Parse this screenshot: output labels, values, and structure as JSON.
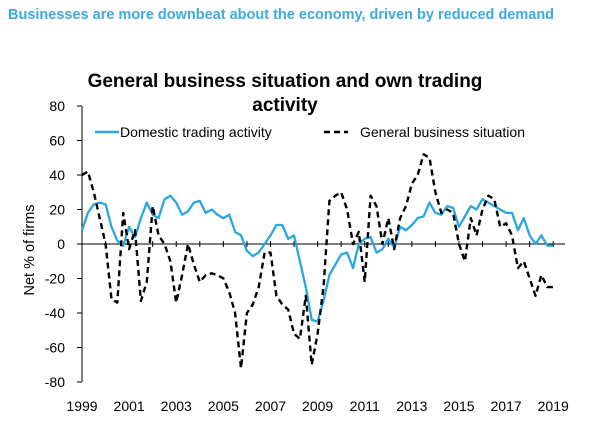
{
  "headline": "Businesses are more downbeat about the economy, driven by reduced demand",
  "chart_data": {
    "type": "line",
    "title": "General business situation and own trading activity",
    "xlabel": "",
    "ylabel": "Net % of firms",
    "xlim": [
      1999,
      2019.5
    ],
    "ylim": [
      -80,
      80
    ],
    "yticks": [
      -80,
      -60,
      -40,
      -20,
      0,
      20,
      40,
      60,
      80
    ],
    "xticks": [
      1999,
      2001,
      2003,
      2005,
      2007,
      2009,
      2011,
      2013,
      2015,
      2017,
      2019
    ],
    "legend_position": "top",
    "grid": false,
    "series": [
      {
        "name": "Domestic trading activity",
        "color": "#2aa7e0",
        "style": "solid",
        "x": [
          1999.0,
          1999.25,
          1999.5,
          1999.75,
          2000.0,
          2000.25,
          2000.5,
          2000.75,
          2001.0,
          2001.25,
          2001.5,
          2001.75,
          2002.0,
          2002.25,
          2002.5,
          2002.75,
          2003.0,
          2003.25,
          2003.5,
          2003.75,
          2004.0,
          2004.25,
          2004.5,
          2004.75,
          2005.0,
          2005.25,
          2005.5,
          2005.75,
          2006.0,
          2006.25,
          2006.5,
          2006.75,
          2007.0,
          2007.25,
          2007.5,
          2007.75,
          2008.0,
          2008.25,
          2008.5,
          2008.75,
          2009.0,
          2009.25,
          2009.5,
          2009.75,
          2010.0,
          2010.25,
          2010.5,
          2010.75,
          2011.0,
          2011.25,
          2011.5,
          2011.75,
          2012.0,
          2012.25,
          2012.5,
          2012.75,
          2013.0,
          2013.25,
          2013.5,
          2013.75,
          2014.0,
          2014.25,
          2014.5,
          2014.75,
          2015.0,
          2015.25,
          2015.5,
          2015.75,
          2016.0,
          2016.25,
          2016.5,
          2016.75,
          2017.0,
          2017.25,
          2017.5,
          2017.75,
          2018.0,
          2018.25,
          2018.5,
          2018.75,
          2019.0
        ],
        "values": [
          8,
          18,
          23,
          24,
          23,
          10,
          2,
          -1,
          10,
          4,
          15,
          24,
          17,
          15,
          26,
          28,
          24,
          17,
          19,
          24,
          25,
          18,
          20,
          17,
          15,
          17,
          7,
          5,
          -4,
          -7,
          -5,
          0,
          5,
          11,
          11,
          3,
          5,
          -10,
          -25,
          -44,
          -45,
          -33,
          -18,
          -12,
          -6,
          -5,
          -14,
          0,
          3,
          4,
          -5,
          -3,
          3,
          -2,
          10,
          8,
          11,
          15,
          16,
          24,
          18,
          17,
          22,
          21,
          10,
          16,
          22,
          20,
          26,
          24,
          22,
          20,
          18,
          18,
          8,
          15,
          5,
          0,
          5,
          -1,
          -1
        ]
      },
      {
        "name": "General business situation",
        "color": "#000000",
        "style": "dashed",
        "x": [
          1999.0,
          1999.25,
          1999.5,
          1999.75,
          2000.0,
          2000.25,
          2000.5,
          2000.75,
          2001.0,
          2001.25,
          2001.5,
          2001.75,
          2002.0,
          2002.25,
          2002.5,
          2002.75,
          2003.0,
          2003.25,
          2003.5,
          2003.75,
          2004.0,
          2004.25,
          2004.5,
          2004.75,
          2005.0,
          2005.25,
          2005.5,
          2005.75,
          2006.0,
          2006.25,
          2006.5,
          2006.75,
          2007.0,
          2007.25,
          2007.5,
          2007.75,
          2008.0,
          2008.25,
          2008.5,
          2008.75,
          2009.0,
          2009.25,
          2009.5,
          2009.75,
          2010.0,
          2010.25,
          2010.5,
          2010.75,
          2011.0,
          2011.25,
          2011.5,
          2011.75,
          2012.0,
          2012.25,
          2012.5,
          2012.75,
          2013.0,
          2013.25,
          2013.5,
          2013.75,
          2014.0,
          2014.25,
          2014.5,
          2014.75,
          2015.0,
          2015.25,
          2015.5,
          2015.75,
          2016.0,
          2016.25,
          2016.5,
          2016.75,
          2017.0,
          2017.25,
          2017.5,
          2017.75,
          2018.0,
          2018.25,
          2018.5,
          2018.75,
          2019.0
        ],
        "values": [
          40,
          42,
          30,
          15,
          0,
          -32,
          -34,
          18,
          -3,
          8,
          -33,
          -22,
          22,
          5,
          0,
          -10,
          -34,
          -18,
          0,
          -12,
          -22,
          -18,
          -17,
          -18,
          -20,
          -28,
          -40,
          -72,
          -40,
          -35,
          -25,
          -5,
          -5,
          -30,
          -35,
          -38,
          -52,
          -55,
          -30,
          -70,
          -52,
          -25,
          25,
          28,
          30,
          20,
          0,
          7,
          -22,
          28,
          22,
          0,
          15,
          -3,
          15,
          22,
          35,
          40,
          52,
          50,
          30,
          18,
          20,
          18,
          0,
          -10,
          15,
          5,
          20,
          28,
          26,
          10,
          12,
          5,
          -14,
          -10,
          -20,
          -30,
          -18,
          -25,
          -25
        ]
      }
    ]
  }
}
